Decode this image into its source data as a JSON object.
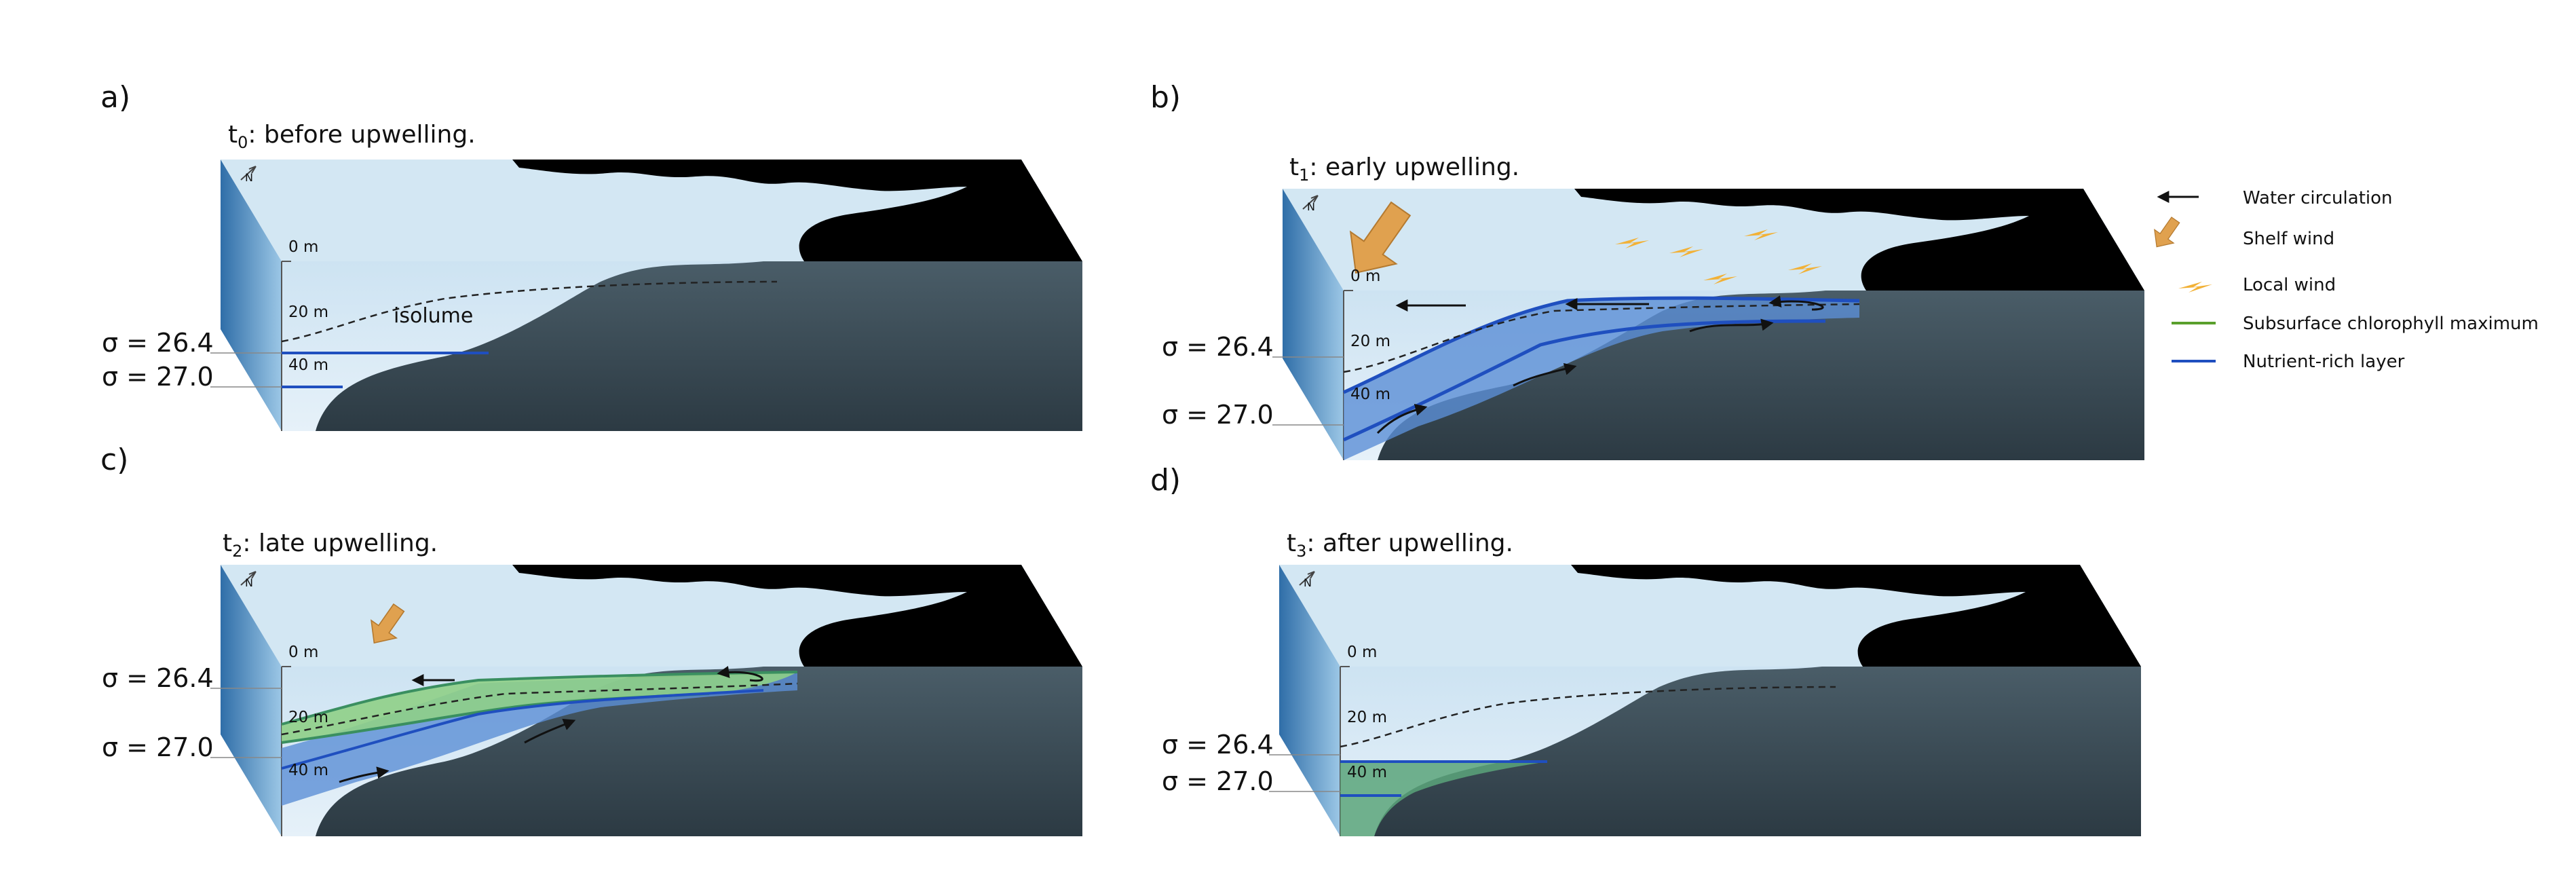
{
  "panels": [
    {
      "letter": "a)",
      "title_main": "t",
      "title_sub": "0",
      "title_rest": ": before upwelling.",
      "depths": [
        "0 m",
        "20 m",
        "40 m"
      ],
      "sigma_upper": "σ = 26.4",
      "sigma_lower": "σ = 27.0",
      "isolume": "isolume",
      "compass": "N"
    },
    {
      "letter": "b)",
      "title_main": "t",
      "title_sub": "1",
      "title_rest": ": early upwelling.",
      "depths": [
        "0 m",
        "20 m",
        "40 m"
      ],
      "sigma_upper": "σ = 26.4",
      "sigma_lower": "σ = 27.0",
      "compass": "N"
    },
    {
      "letter": "c)",
      "title_main": "t",
      "title_sub": "2",
      "title_rest": ": late upwelling.",
      "depths": [
        "0 m",
        "20 m",
        "40 m"
      ],
      "sigma_upper": "σ = 26.4",
      "sigma_lower": "σ = 27.0",
      "compass": "N"
    },
    {
      "letter": "d)",
      "title_main": "t",
      "title_sub": "3",
      "title_rest": ": after upwelling.",
      "depths": [
        "0 m",
        "20 m",
        "40 m"
      ],
      "sigma_upper": "σ = 26.4",
      "sigma_lower": "σ = 27.0",
      "compass": "N"
    }
  ],
  "legend": {
    "items": [
      {
        "label": "Water circulation",
        "symbol": "arrow-icon"
      },
      {
        "label": "Shelf wind",
        "symbol": "shelf-wind-arrow-icon"
      },
      {
        "label": "Local wind",
        "symbol": "local-wind-icon"
      },
      {
        "label": "Subsurface chlorophyll maximum",
        "symbol": "green-line-icon",
        "color": "#5aa02c"
      },
      {
        "label": "Nutrient-rich layer",
        "symbol": "blue-line-icon",
        "color": "#1f4fbf"
      }
    ]
  },
  "colors": {
    "sky": "#d3e7f3",
    "land": "#000000",
    "bottom": "#3a4d58",
    "water_blue": "#5b8fd6",
    "nutrient_line": "#1f4fbf",
    "chlorophyll": "#7fc27a",
    "shelf_wind": "#e0a14f",
    "local_wind": "#f2b136"
  }
}
